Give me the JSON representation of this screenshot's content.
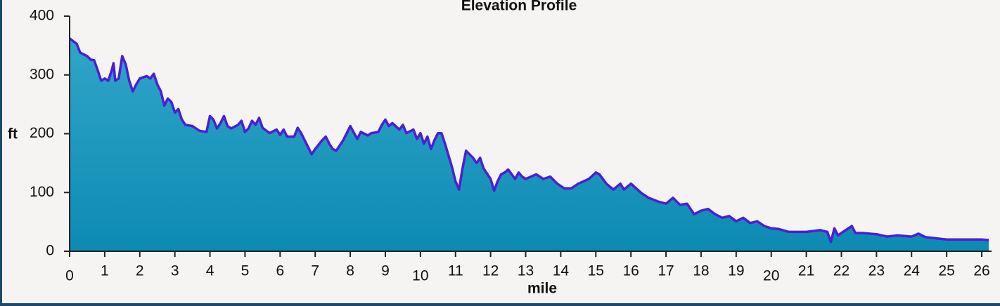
{
  "chart_data": {
    "type": "area",
    "title": "Elevation Profile",
    "xlabel": "mile",
    "ylabel": "ft",
    "fill_color": "#1592bb",
    "line_color": "#4a1fd6",
    "xlim": [
      0,
      26.2
    ],
    "ylim": [
      0,
      400
    ],
    "xticks": [
      0,
      1,
      2,
      3,
      4,
      5,
      6,
      7,
      8,
      9,
      10,
      11,
      12,
      13,
      14,
      15,
      16,
      17,
      18,
      19,
      20,
      21,
      22,
      23,
      24,
      25,
      26
    ],
    "yticks": [
      0,
      100,
      200,
      300,
      400
    ],
    "x": [
      0,
      0.2,
      0.3,
      0.5,
      0.6,
      0.7,
      0.8,
      0.9,
      1.0,
      1.1,
      1.2,
      1.25,
      1.3,
      1.4,
      1.5,
      1.6,
      1.7,
      1.8,
      1.9,
      2.0,
      2.2,
      2.3,
      2.4,
      2.5,
      2.6,
      2.7,
      2.8,
      2.9,
      3.0,
      3.1,
      3.2,
      3.3,
      3.5,
      3.7,
      3.9,
      4.0,
      4.1,
      4.2,
      4.3,
      4.4,
      4.5,
      4.6,
      4.8,
      4.9,
      5.0,
      5.1,
      5.2,
      5.3,
      5.4,
      5.5,
      5.7,
      5.9,
      6.0,
      6.1,
      6.2,
      6.4,
      6.5,
      6.6,
      6.7,
      6.8,
      6.9,
      7.0,
      7.2,
      7.3,
      7.4,
      7.5,
      7.6,
      7.8,
      7.9,
      8.0,
      8.2,
      8.3,
      8.5,
      8.6,
      8.8,
      8.9,
      9.0,
      9.1,
      9.2,
      9.4,
      9.5,
      9.6,
      9.8,
      9.9,
      10.0,
      10.1,
      10.2,
      10.3,
      10.4,
      10.5,
      10.6,
      10.7,
      10.9,
      11.0,
      11.1,
      11.2,
      11.3,
      11.4,
      11.5,
      11.6,
      11.7,
      11.8,
      12.0,
      12.1,
      12.2,
      12.3,
      12.4,
      12.5,
      12.6,
      12.7,
      12.8,
      12.9,
      13.0,
      13.3,
      13.5,
      13.7,
      13.9,
      14.1,
      14.3,
      14.5,
      14.8,
      15.0,
      15.1,
      15.3,
      15.5,
      15.7,
      15.8,
      16.0,
      16.3,
      16.5,
      16.8,
      17.0,
      17.2,
      17.4,
      17.6,
      17.8,
      18.0,
      18.2,
      18.4,
      18.6,
      18.8,
      19.0,
      19.2,
      19.4,
      19.6,
      19.8,
      20.0,
      20.2,
      20.5,
      21.0,
      21.4,
      21.6,
      21.7,
      21.8,
      21.9,
      22.0,
      22.3,
      22.4,
      22.6,
      23.0,
      23.3,
      23.6,
      24.0,
      24.2,
      24.4,
      25.0,
      25.5,
      26.0,
      26.2
    ],
    "values": [
      362,
      353,
      338,
      332,
      326,
      325,
      308,
      290,
      294,
      290,
      308,
      320,
      290,
      294,
      332,
      318,
      290,
      272,
      284,
      294,
      298,
      294,
      302,
      284,
      272,
      248,
      260,
      254,
      236,
      242,
      224,
      215,
      213,
      205,
      203,
      230,
      224,
      209,
      218,
      230,
      213,
      209,
      215,
      222,
      203,
      209,
      222,
      215,
      227,
      210,
      201,
      207,
      198,
      207,
      195,
      195,
      210,
      201,
      189,
      177,
      165,
      174,
      189,
      195,
      183,
      174,
      171,
      189,
      201,
      213,
      191,
      203,
      197,
      201,
      203,
      215,
      224,
      213,
      218,
      207,
      215,
      201,
      207,
      191,
      201,
      183,
      195,
      174,
      189,
      201,
      201,
      183,
      143,
      119,
      105,
      141,
      171,
      165,
      159,
      150,
      159,
      141,
      123,
      103,
      119,
      131,
      134,
      139,
      131,
      123,
      134,
      127,
      123,
      131,
      123,
      127,
      115,
      107,
      107,
      115,
      123,
      134,
      131,
      115,
      105,
      115,
      105,
      115,
      99,
      91,
      84,
      81,
      91,
      79,
      81,
      63,
      69,
      72,
      63,
      57,
      60,
      51,
      57,
      48,
      51,
      43,
      39,
      38,
      33,
      33,
      36,
      33,
      16,
      39,
      27,
      31,
      43,
      31,
      31,
      29,
      25,
      27,
      25,
      30,
      24,
      20,
      20,
      20,
      19
    ]
  }
}
